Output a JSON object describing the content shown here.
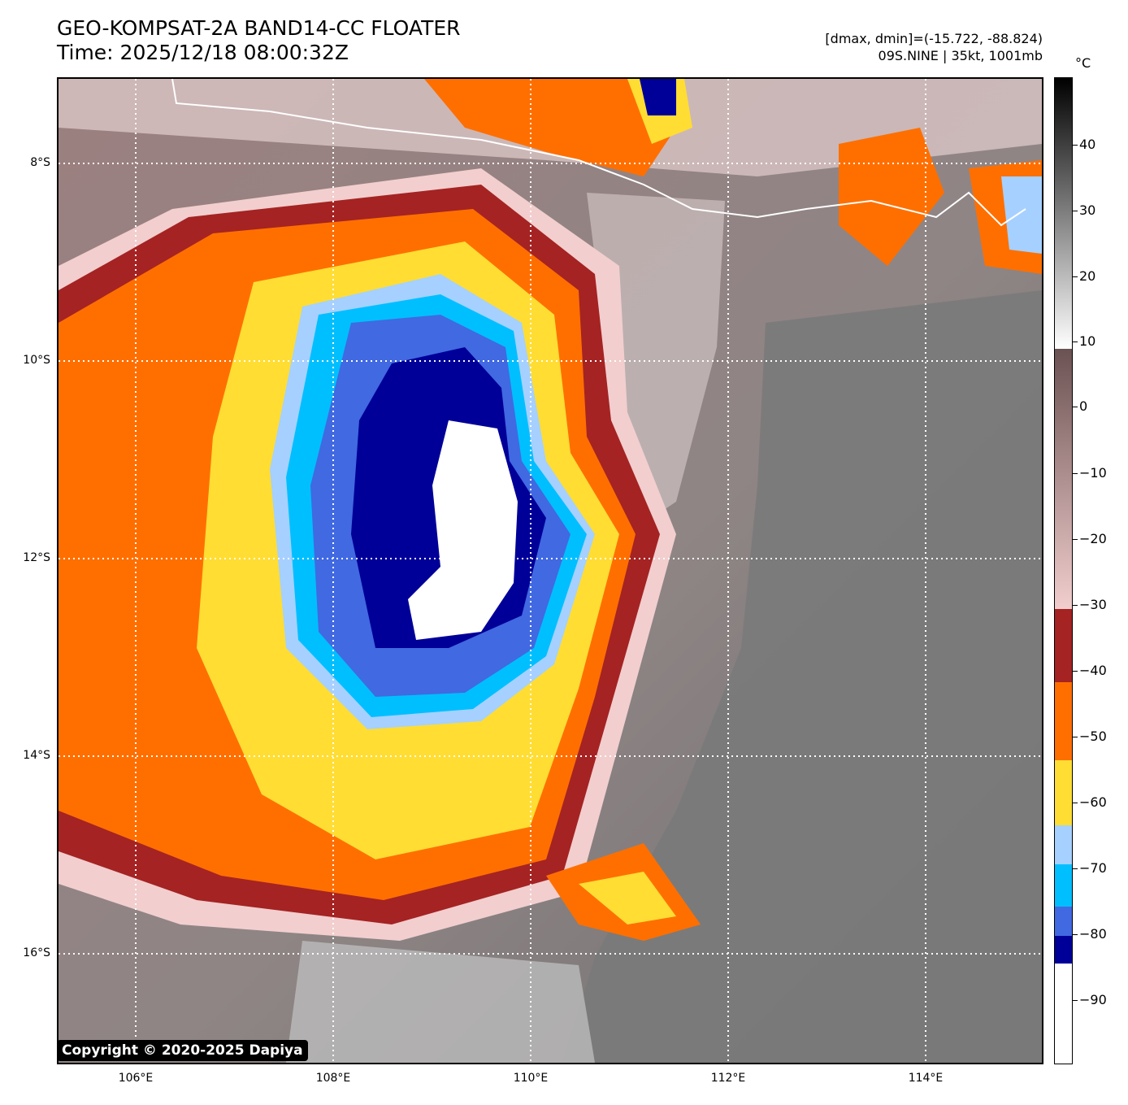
{
  "header": {
    "title_line1": "GEO-KOMPSAT-2A BAND14-CC FLOATER",
    "title_line2": "Time: 2025/12/18 08:00:32Z",
    "range_text": "[dmax, dmin]=(-15.722, -88.824)",
    "storm_text": "09S.NINE | 35kt, 1001mb"
  },
  "map": {
    "lat_labels": [
      "8°S",
      "10°S",
      "12°S",
      "14°S",
      "16°S"
    ],
    "lon_labels": [
      "106°E",
      "108°E",
      "110°E",
      "112°E",
      "114°E"
    ],
    "copyright": "Copyright © 2020-2025 Dapiya"
  },
  "colorbar": {
    "unit": "°C",
    "tick_labels": [
      "40",
      "30",
      "20",
      "10",
      "0",
      "−10",
      "−20",
      "−30",
      "−40",
      "−50",
      "−60",
      "−70",
      "−80",
      "−90"
    ],
    "colors": {
      "white_core": "#ffffff",
      "navy": "#000099",
      "royal_blue": "#4169e1",
      "deep_sky": "#00bfff",
      "light_blue": "#a6d0ff",
      "yellow": "#ffdd33",
      "orange": "#ff6f00",
      "dark_red": "#a52323",
      "pink": "#f2cece",
      "mauve": "#8a6c6c",
      "grey": "#7c7c7c"
    }
  }
}
